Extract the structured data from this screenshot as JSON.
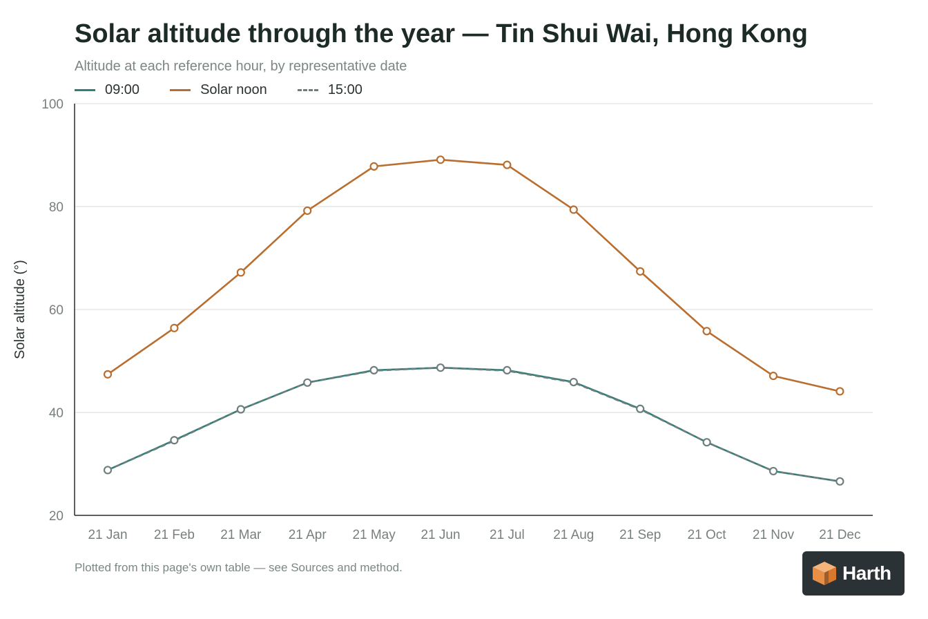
{
  "title": "Solar altitude through the year — Tin Shui Wai, Hong Kong",
  "subtitle": "Altitude at each reference hour, by representative date",
  "footnote": "Plotted from this page's own table — see Sources and method.",
  "logo_text": "Harth",
  "colors": {
    "morning": "#2e7f7a",
    "noon": "#b96d2e",
    "afternoon": "#6e7e7d",
    "grid": "#e6e8e8",
    "axis": "#2a2a2a",
    "tick_label": "#777f7d"
  },
  "chart_data": {
    "type": "line",
    "title": "Solar altitude through the year — Tin Shui Wai, Hong Kong",
    "subtitle": "Altitude at each reference hour, by representative date",
    "xlabel": "",
    "ylabel": "Solar altitude (°)",
    "ylim": [
      20,
      100
    ],
    "yticks": [
      20,
      40,
      60,
      80,
      100
    ],
    "grid": true,
    "legend_position": "top-left",
    "categories": [
      "21 Jan",
      "21 Feb",
      "21 Mar",
      "21 Apr",
      "21 May",
      "21 Jun",
      "21 Jul",
      "21 Aug",
      "21 Sep",
      "21 Oct",
      "21 Nov",
      "21 Dec"
    ],
    "series": [
      {
        "name": "09:00",
        "key": "morning",
        "dashed": false,
        "values": [
          28.8,
          34.6,
          40.6,
          45.8,
          48.2,
          48.7,
          48.2,
          45.9,
          40.7,
          34.2,
          28.6,
          26.6
        ]
      },
      {
        "name": "Solar noon",
        "key": "noon",
        "dashed": false,
        "values": [
          47.4,
          56.4,
          67.2,
          79.2,
          87.8,
          89.1,
          88.1,
          79.4,
          67.4,
          55.8,
          47.1,
          44.1
        ]
      },
      {
        "name": "15:00",
        "key": "afternoon",
        "dashed": true,
        "values": [
          28.8,
          34.5,
          40.6,
          45.8,
          48.1,
          48.7,
          48.1,
          45.8,
          40.6,
          34.2,
          28.6,
          26.6
        ]
      }
    ]
  }
}
